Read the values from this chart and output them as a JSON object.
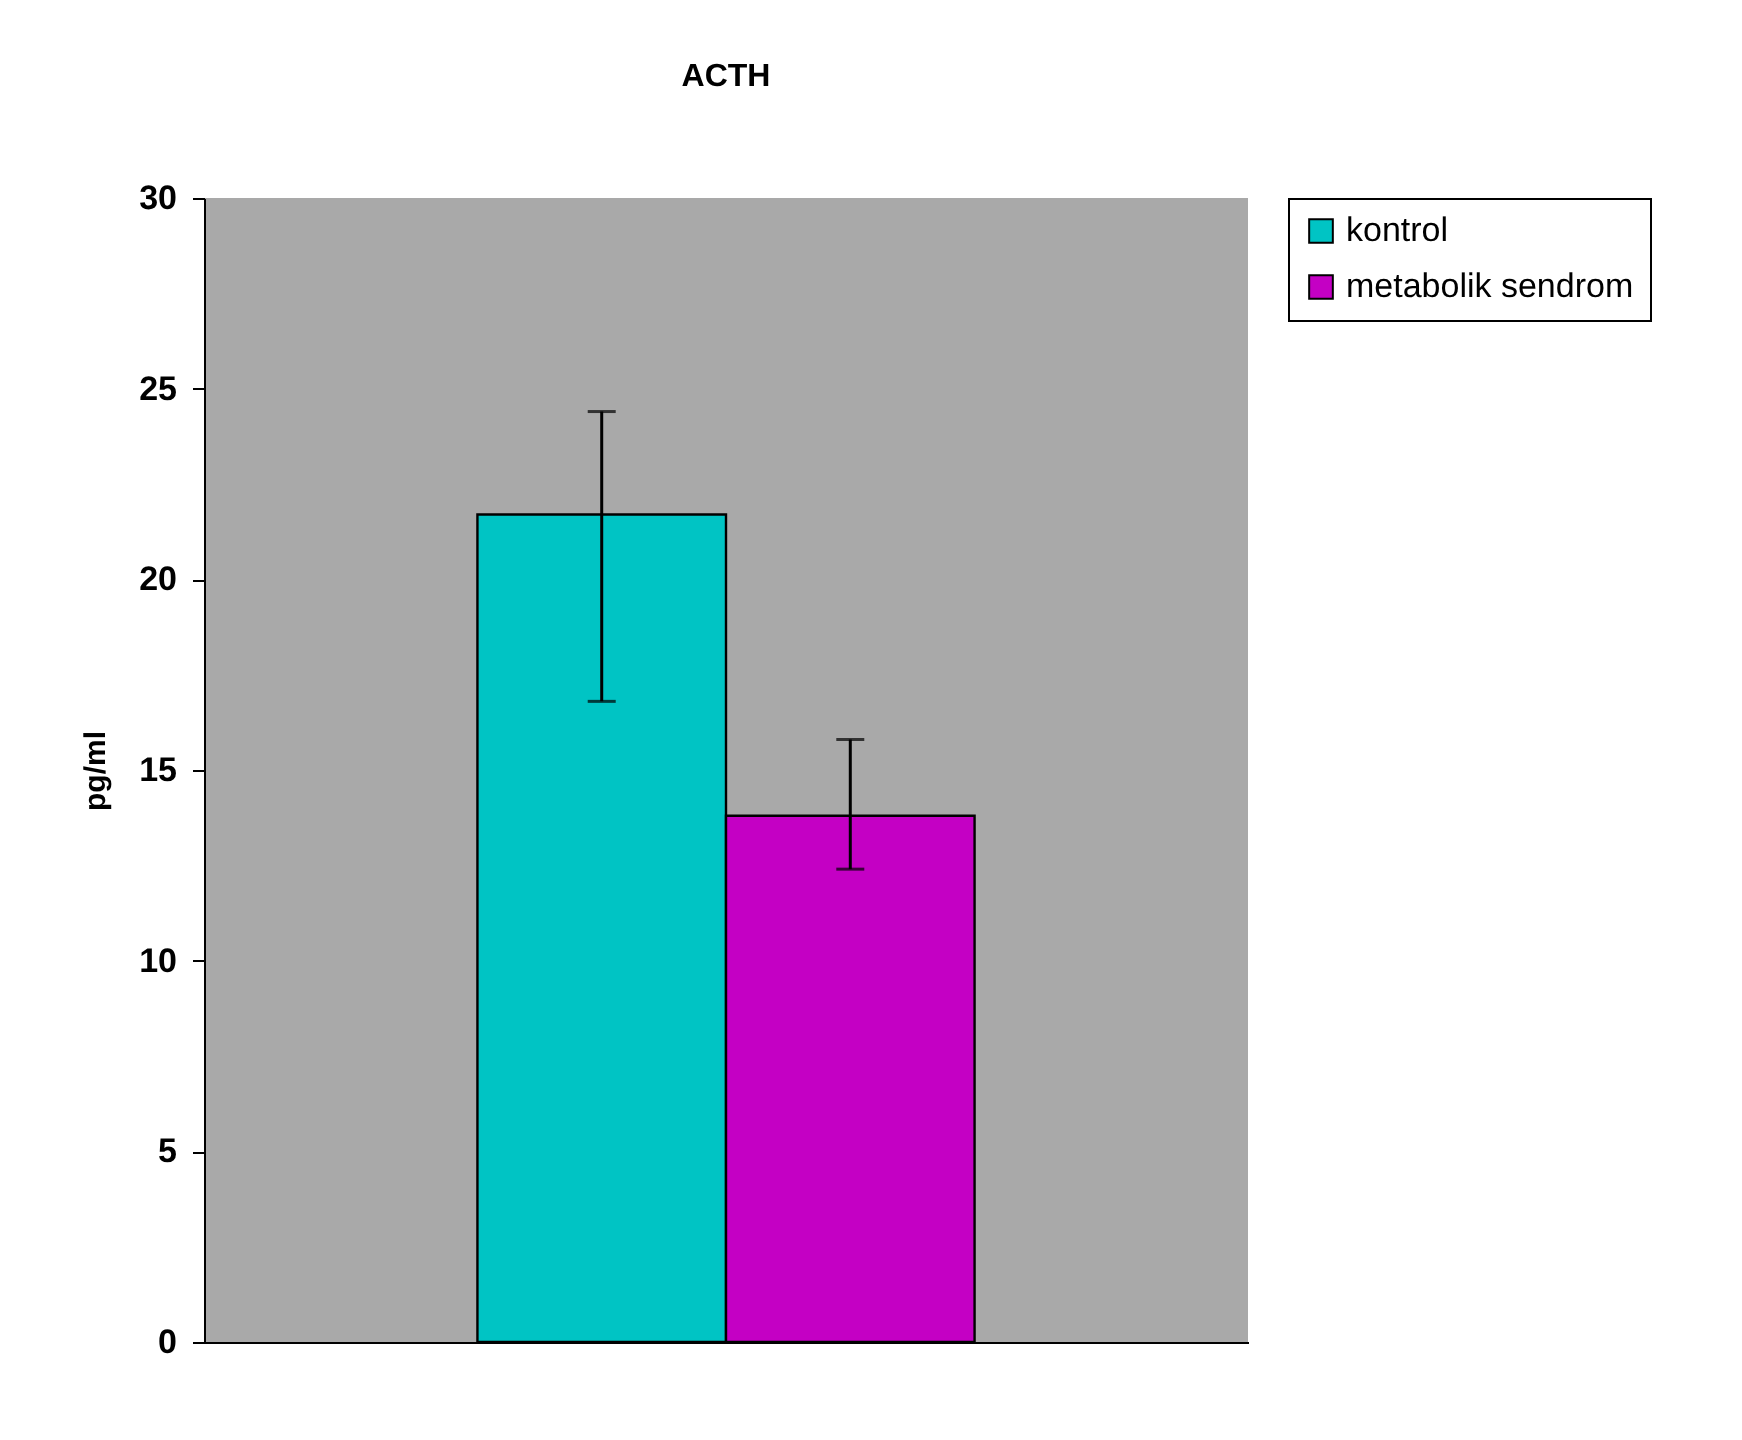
{
  "chart_data": {
    "type": "bar",
    "title": "ACTH",
    "ylabel": "pg/ml",
    "categories": [
      null
    ],
    "series": [
      {
        "name": "kontrol",
        "color": "#00c4c4",
        "values": [
          21.7
        ],
        "errors": [
          [
            16.8,
            24.4
          ]
        ]
      },
      {
        "name": "metabolik sendrom",
        "color": "#c400c4",
        "values": [
          13.8
        ],
        "errors": [
          [
            12.4,
            15.8
          ]
        ]
      }
    ],
    "ylim": [
      0,
      30
    ],
    "yticks": [
      0,
      5,
      10,
      15,
      20,
      25,
      30
    ],
    "legend": "right",
    "tick_labels": "y"
  }
}
